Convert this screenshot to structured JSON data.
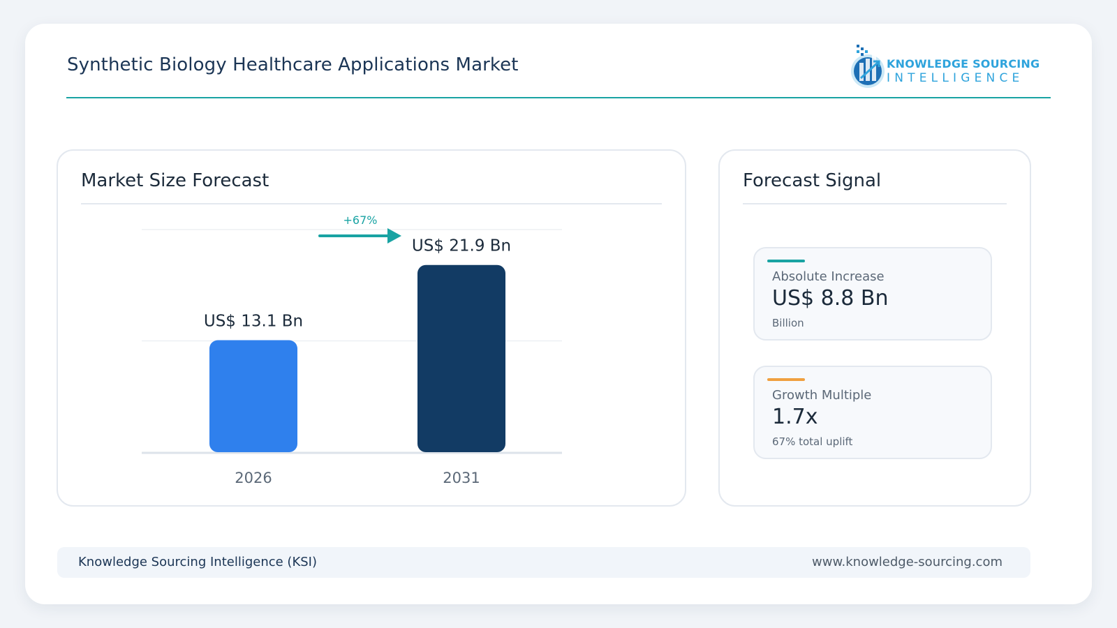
{
  "header": {
    "title": "Synthetic Biology Healthcare Applications Market",
    "logo_name": "KNOWLEDGE SOURCING",
    "logo_sub": "INTELLIGENCE"
  },
  "chart_panel": {
    "title": "Market Size Forecast"
  },
  "chart_data": {
    "type": "bar",
    "categories": [
      "2026",
      "2031"
    ],
    "values": [
      13.1,
      21.9
    ],
    "value_labels": [
      "US$ 13.1 Bn",
      "US$ 21.9 Bn"
    ],
    "annotation": "+67%",
    "colors": [
      "#2f80ed",
      "#123b64"
    ],
    "ylim": [
      0,
      25
    ],
    "grid": true
  },
  "signal_panel": {
    "title": "Forecast Signal",
    "cards": [
      {
        "label": "Absolute Increase",
        "value": "US$ 8.8 Bn",
        "note": "Billion",
        "accent": "#19a3a3"
      },
      {
        "label": "Growth Multiple",
        "value": "1.7x",
        "note": "67% total uplift",
        "accent": "#f0a040"
      }
    ]
  },
  "footer": {
    "left": "Knowledge Sourcing Intelligence (KSI)",
    "right": "www.knowledge-sourcing.com"
  }
}
